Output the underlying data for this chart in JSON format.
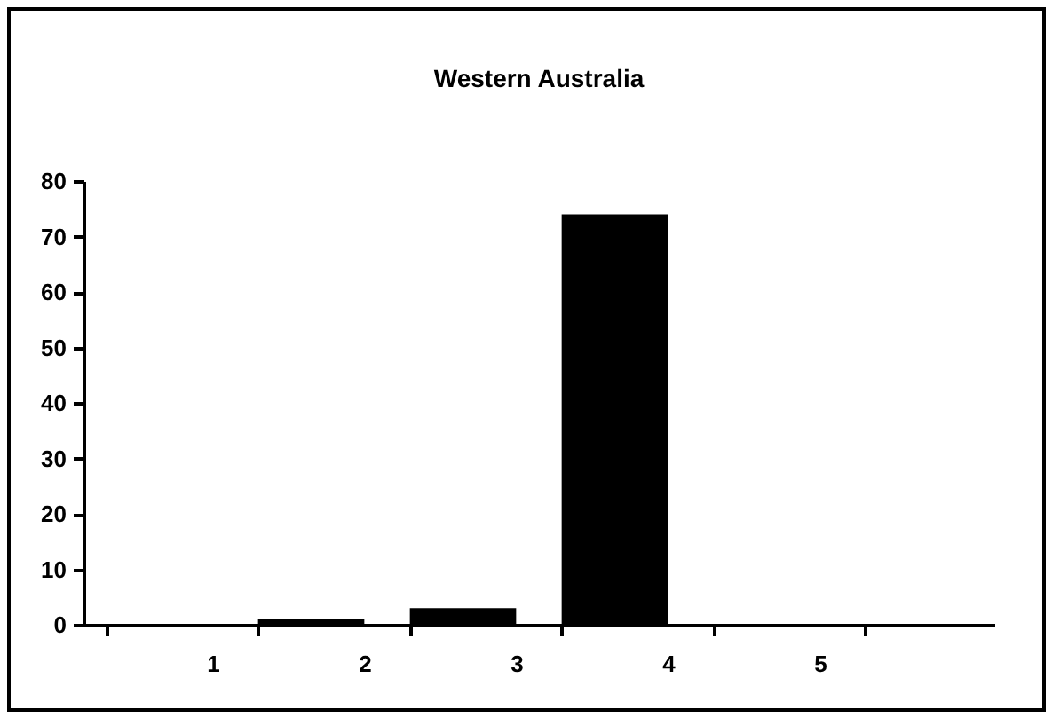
{
  "chart_data": {
    "type": "bar",
    "title": "Western Australia",
    "categories": [
      "1",
      "2",
      "3",
      "4",
      "5",
      null
    ],
    "values": [
      0,
      1,
      3,
      74,
      0,
      null
    ],
    "color": "#000000",
    "ylim": [
      0,
      80
    ],
    "yticks": [
      0,
      10,
      20,
      30,
      40,
      50,
      60,
      70,
      80
    ],
    "grid": false
  }
}
